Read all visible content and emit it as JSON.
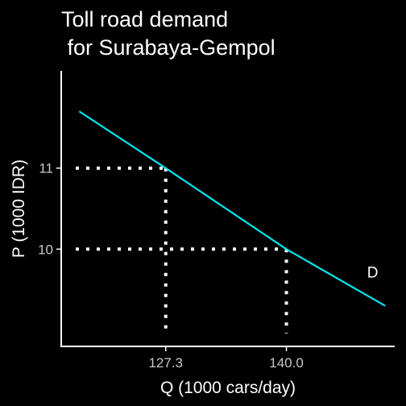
{
  "chart_data": {
    "type": "line",
    "title_line1": "Toll road demand",
    "title_line2": " for Surabaya-Gempol",
    "xlabel": "Q (1000 cars/day)",
    "ylabel": "P (1000 IDR)",
    "xlim": [
      116.3,
      151.4
    ],
    "ylim": [
      8.8,
      12.2
    ],
    "x_ticks": [
      {
        "value": 127.3,
        "label": "127.3"
      },
      {
        "value": 140.0,
        "label": "140.0"
      }
    ],
    "y_ticks": [
      {
        "value": 10,
        "label": "10"
      },
      {
        "value": 11,
        "label": "11"
      }
    ],
    "series": [
      {
        "color": "#00e5ee",
        "x": [
          118.2,
          127.3,
          140.0,
          150.4
        ],
        "y": [
          11.7,
          11.0,
          10.0,
          9.3
        ]
      }
    ],
    "curve_label": "D",
    "curve_label_at": {
      "x": 148.5,
      "y": 9.65
    },
    "reference_lines": [
      {
        "x": 127.3,
        "y": 11
      },
      {
        "x": 140.0,
        "y": 10
      }
    ],
    "grid": false
  }
}
